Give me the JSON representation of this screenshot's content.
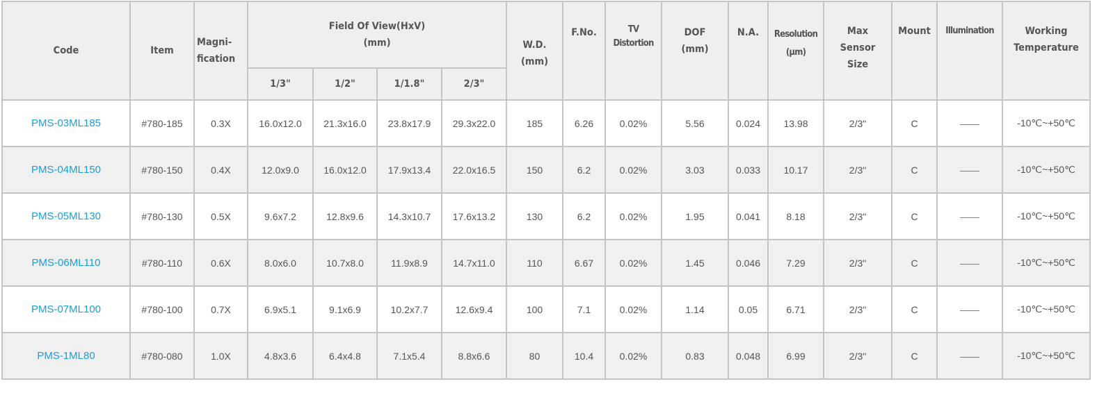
{
  "headers": {
    "code": "Code",
    "item": "Item",
    "magnification": "Magni-\nfication",
    "fov": "Field Of View(HxV)\n(mm)",
    "fov_sizes": [
      "1/3\"",
      "1/2\"",
      "1/1.8\"",
      "2/3\""
    ],
    "wd": "W.D.\n(mm)",
    "fno": "F.No.",
    "tv": "TV\nDistortion",
    "dof": "DOF\n(mm)",
    "na": "N.A.",
    "resolution": "Resolution\n(μm)",
    "sensor": "Max\nSensor\nSize",
    "mount": "Mount",
    "illumination": "Illumination",
    "temp": "Working\nTemperature"
  },
  "colors": {
    "link": "#1a9fd6",
    "header_bg": "#efefef",
    "alt_row": "#f0f0f0"
  },
  "rows": [
    [
      "PMS-03ML185",
      "#780-185",
      "0.3X",
      "16.0x12.0",
      "21.3x16.0",
      "23.8x17.9",
      "29.3x22.0",
      "185",
      "6.26",
      "0.02%",
      "5.56",
      "0.024",
      "13.98",
      "2/3\"",
      "C",
      "——",
      "-10℃~+50℃"
    ],
    [
      "PMS-04ML150",
      "#780-150",
      "0.4X",
      "12.0x9.0",
      "16.0x12.0",
      "17.9x13.4",
      "22.0x16.5",
      "150",
      "6.2",
      "0.02%",
      "3.03",
      "0.033",
      "10.17",
      "2/3\"",
      "C",
      "——",
      "-10℃~+50℃"
    ],
    [
      "PMS-05ML130",
      "#780-130",
      "0.5X",
      "9.6x7.2",
      "12.8x9.6",
      "14.3x10.7",
      "17.6x13.2",
      "130",
      "6.2",
      "0.02%",
      "1.95",
      "0.041",
      "8.18",
      "2/3\"",
      "C",
      "——",
      "-10℃~+50℃"
    ],
    [
      "PMS-06ML110",
      "#780-110",
      "0.6X",
      "8.0x6.0",
      "10.7x8.0",
      "11.9x8.9",
      "14.7x11.0",
      "110",
      "6.67",
      "0.02%",
      "1.45",
      "0.046",
      "7.29",
      "2/3\"",
      "C",
      "——",
      "-10℃~+50℃"
    ],
    [
      "PMS-07ML100",
      "#780-100",
      "0.7X",
      "6.9x5.1",
      "9.1x6.9",
      "10.2x7.7",
      "12.6x9.4",
      "100",
      "7.1",
      "0.02%",
      "1.14",
      "0.05",
      "6.71",
      "2/3\"",
      "C",
      "——",
      "-10℃~+50℃"
    ],
    [
      "PMS-1ML80",
      "#780-080",
      "1.0X",
      "4.8x3.6",
      "6.4x4.8",
      "7.1x5.4",
      "8.8x6.6",
      "80",
      "10.4",
      "0.02%",
      "0.83",
      "0.048",
      "6.99",
      "2/3\"",
      "C",
      "——",
      "-10℃~+50℃"
    ]
  ]
}
